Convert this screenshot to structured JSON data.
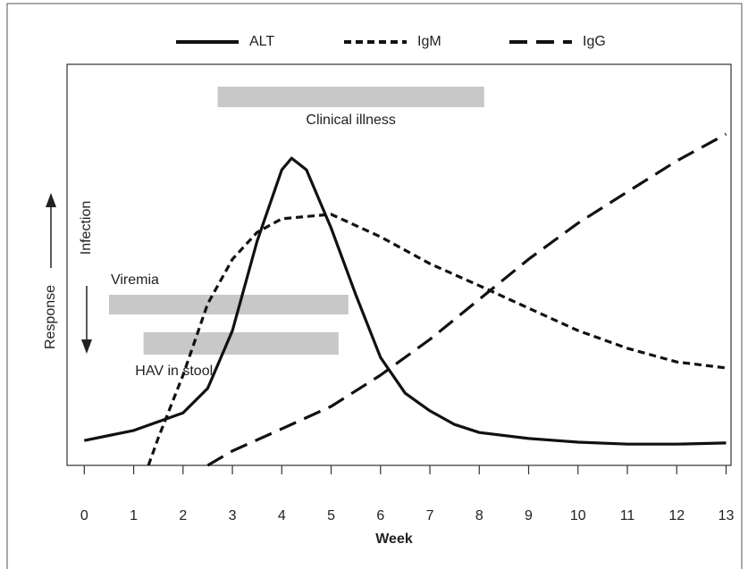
{
  "chart_data": {
    "type": "line",
    "xlabel": "Week",
    "ylabel": "Response",
    "annotation": "Infection",
    "xlim": [
      -0.35,
      13.1
    ],
    "ylim": [
      0,
      100
    ],
    "xticks": [
      0,
      1,
      2,
      3,
      4,
      5,
      6,
      7,
      8,
      9,
      10,
      11,
      12,
      13
    ],
    "series": [
      {
        "name": "ALT",
        "color": "#111111",
        "line_style": "solid",
        "x": [
          0,
          1,
          2,
          2.5,
          3,
          3.5,
          4,
          4.2,
          4.5,
          5,
          5.5,
          6,
          6.5,
          7,
          7.5,
          8,
          9,
          10,
          11,
          12,
          13
        ],
        "values": [
          6.2,
          8.7,
          13.1,
          19.2,
          33.6,
          55.9,
          73.7,
          76.6,
          73.7,
          59.2,
          42.5,
          26.9,
          18.0,
          13.6,
          10.2,
          8.2,
          6.7,
          5.8,
          5.3,
          5.3,
          5.6
        ]
      },
      {
        "name": "IgM",
        "color": "#111111",
        "line_style": "dotted",
        "x": [
          1.3,
          1.5,
          2,
          2.5,
          3,
          3.5,
          4,
          5,
          6,
          7,
          8,
          9,
          10,
          11,
          12,
          13
        ],
        "values": [
          0,
          6.9,
          22.5,
          40.3,
          51.4,
          58.1,
          61.5,
          62.6,
          57.0,
          50.3,
          44.8,
          39.2,
          33.6,
          29.2,
          25.8,
          24.3
        ]
      },
      {
        "name": "IgG",
        "color": "#111111",
        "line_style": "dashed",
        "x": [
          2.5,
          3,
          4,
          5,
          6,
          7,
          8,
          9,
          10,
          11,
          12,
          13
        ],
        "values": [
          0,
          3.6,
          9.1,
          14.7,
          22.5,
          31.4,
          41.4,
          51.4,
          60.4,
          68.2,
          75.9,
          82.6
        ]
      }
    ],
    "ranges": [
      {
        "label": "Clinical illness",
        "start": 2.7,
        "end": 8.1,
        "color": "#c8c8c8"
      },
      {
        "label": "Viremia",
        "start": 0.5,
        "end": 5.35,
        "color": "#c8c8c8"
      },
      {
        "label": "HAV in stool",
        "start": 1.2,
        "end": 5.15,
        "color": "#c8c8c8"
      }
    ]
  }
}
